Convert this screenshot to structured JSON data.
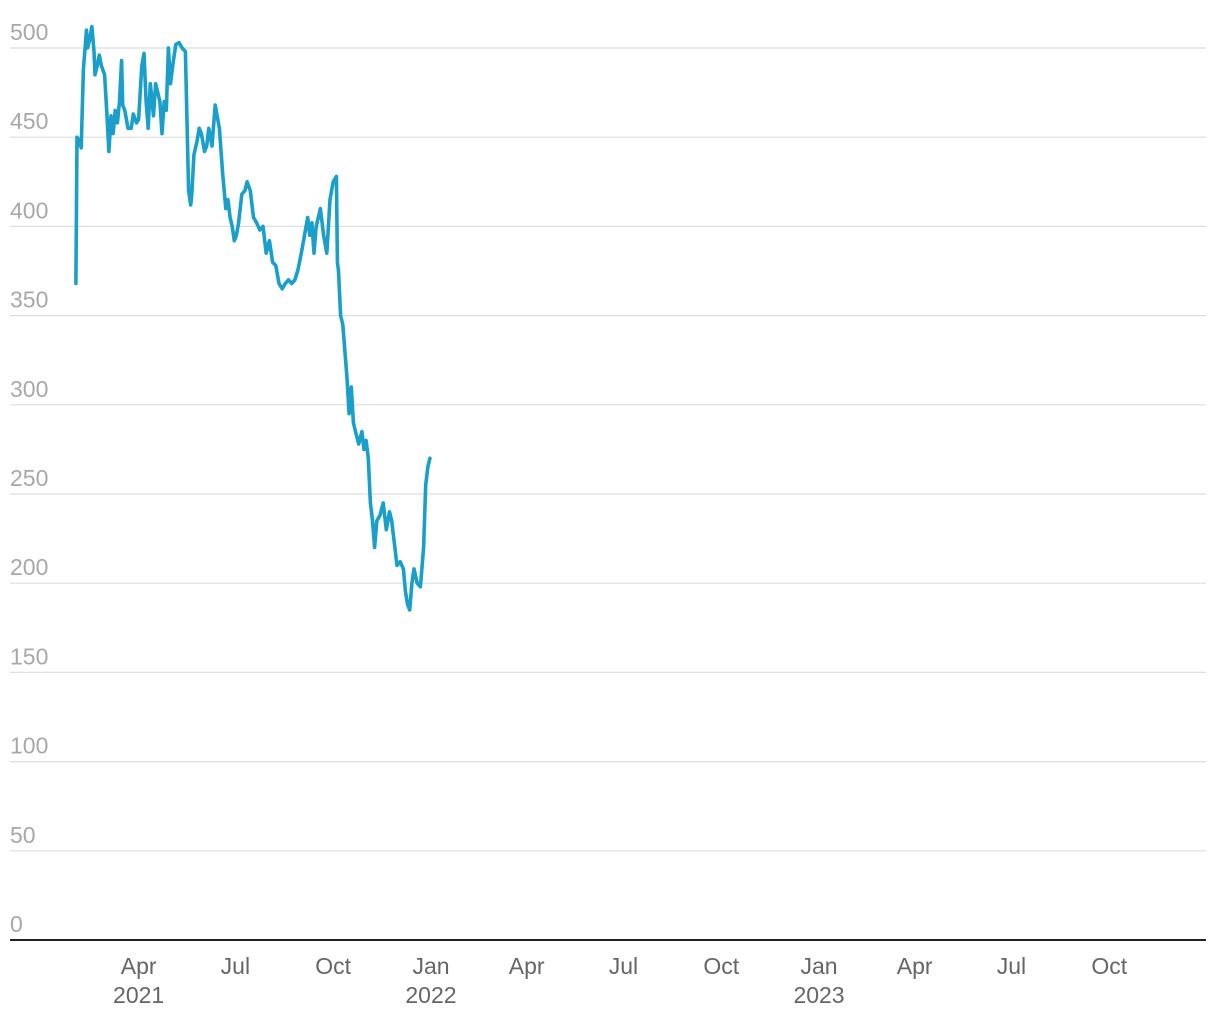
{
  "chart_data": {
    "type": "line",
    "title": "",
    "xlabel": "",
    "ylabel": "",
    "ylim": [
      0,
      500
    ],
    "grid": true,
    "legend": "none",
    "y_ticks": [
      "0",
      "50",
      "100",
      "150",
      "200",
      "250",
      "300",
      "350",
      "400",
      "450",
      "500"
    ],
    "x_ticks": [
      {
        "date": "2021-04-01",
        "label": "Apr",
        "year": "2021"
      },
      {
        "date": "2021-07-01",
        "label": "Jul",
        "year": ""
      },
      {
        "date": "2021-10-01",
        "label": "Oct",
        "year": ""
      },
      {
        "date": "2022-01-01",
        "label": "Jan",
        "year": "2022"
      },
      {
        "date": "2022-04-01",
        "label": "Apr",
        "year": ""
      },
      {
        "date": "2022-07-01",
        "label": "Jul",
        "year": ""
      },
      {
        "date": "2022-10-01",
        "label": "Oct",
        "year": ""
      },
      {
        "date": "2023-01-01",
        "label": "Jan",
        "year": "2023"
      },
      {
        "date": "2023-04-01",
        "label": "Apr",
        "year": ""
      },
      {
        "date": "2023-07-01",
        "label": "Jul",
        "year": ""
      },
      {
        "date": "2023-10-01",
        "label": "Oct",
        "year": ""
      }
    ],
    "x_range": [
      "2020-12-01",
      "2023-12-31"
    ],
    "series": [
      {
        "color": "#1a9fcb",
        "points": [
          [
            "2021-02-01",
            368
          ],
          [
            "2021-02-02",
            450
          ],
          [
            "2021-02-04",
            448
          ],
          [
            "2021-02-06",
            444
          ],
          [
            "2021-02-08",
            488
          ],
          [
            "2021-02-11",
            510
          ],
          [
            "2021-02-12",
            500
          ],
          [
            "2021-02-14",
            505
          ],
          [
            "2021-02-16",
            512
          ],
          [
            "2021-02-18",
            498
          ],
          [
            "2021-02-19",
            485
          ],
          [
            "2021-02-21",
            490
          ],
          [
            "2021-02-23",
            496
          ],
          [
            "2021-02-25",
            490
          ],
          [
            "2021-02-28",
            485
          ],
          [
            "2021-03-02",
            465
          ],
          [
            "2021-03-04",
            442
          ],
          [
            "2021-03-06",
            462
          ],
          [
            "2021-03-08",
            452
          ],
          [
            "2021-03-10",
            465
          ],
          [
            "2021-03-12",
            458
          ],
          [
            "2021-03-14",
            470
          ],
          [
            "2021-03-16",
            493
          ],
          [
            "2021-03-17",
            468
          ],
          [
            "2021-03-19",
            465
          ],
          [
            "2021-03-22",
            455
          ],
          [
            "2021-03-25",
            455
          ],
          [
            "2021-03-27",
            463
          ],
          [
            "2021-03-30",
            458
          ],
          [
            "2021-04-01",
            460
          ],
          [
            "2021-04-04",
            490
          ],
          [
            "2021-04-06",
            497
          ],
          [
            "2021-04-08",
            470
          ],
          [
            "2021-04-10",
            455
          ],
          [
            "2021-04-12",
            480
          ],
          [
            "2021-04-15",
            462
          ],
          [
            "2021-04-17",
            480
          ],
          [
            "2021-04-19",
            475
          ],
          [
            "2021-04-21",
            470
          ],
          [
            "2021-04-23",
            452
          ],
          [
            "2021-04-25",
            470
          ],
          [
            "2021-04-27",
            465
          ],
          [
            "2021-04-29",
            500
          ],
          [
            "2021-05-01",
            480
          ],
          [
            "2021-05-03",
            490
          ],
          [
            "2021-05-06",
            502
          ],
          [
            "2021-05-09",
            503
          ],
          [
            "2021-05-12",
            500
          ],
          [
            "2021-05-15",
            498
          ],
          [
            "2021-05-18",
            420
          ],
          [
            "2021-05-20",
            412
          ],
          [
            "2021-05-21",
            418
          ],
          [
            "2021-05-23",
            440
          ],
          [
            "2021-05-26",
            448
          ],
          [
            "2021-05-28",
            455
          ],
          [
            "2021-05-30",
            452
          ],
          [
            "2021-06-02",
            442
          ],
          [
            "2021-06-04",
            445
          ],
          [
            "2021-06-06",
            455
          ],
          [
            "2021-06-09",
            445
          ],
          [
            "2021-06-12",
            468
          ],
          [
            "2021-06-16",
            455
          ],
          [
            "2021-06-19",
            430
          ],
          [
            "2021-06-22",
            410
          ],
          [
            "2021-06-24",
            415
          ],
          [
            "2021-06-26",
            405
          ],
          [
            "2021-06-28",
            400
          ],
          [
            "2021-06-30",
            392
          ],
          [
            "2021-07-02",
            395
          ],
          [
            "2021-07-04",
            402
          ],
          [
            "2021-07-07",
            418
          ],
          [
            "2021-07-10",
            420
          ],
          [
            "2021-07-12",
            425
          ],
          [
            "2021-07-15",
            420
          ],
          [
            "2021-07-18",
            405
          ],
          [
            "2021-07-21",
            402
          ],
          [
            "2021-07-24",
            398
          ],
          [
            "2021-07-27",
            400
          ],
          [
            "2021-07-30",
            385
          ],
          [
            "2021-08-02",
            392
          ],
          [
            "2021-08-05",
            380
          ],
          [
            "2021-08-08",
            378
          ],
          [
            "2021-08-11",
            368
          ],
          [
            "2021-08-14",
            365
          ],
          [
            "2021-08-17",
            368
          ],
          [
            "2021-08-20",
            370
          ],
          [
            "2021-08-23",
            368
          ],
          [
            "2021-08-26",
            370
          ],
          [
            "2021-08-29",
            376
          ],
          [
            "2021-09-01",
            385
          ],
          [
            "2021-09-04",
            395
          ],
          [
            "2021-09-07",
            405
          ],
          [
            "2021-09-09",
            395
          ],
          [
            "2021-09-11",
            402
          ],
          [
            "2021-09-13",
            385
          ],
          [
            "2021-09-15",
            400
          ],
          [
            "2021-09-17",
            405
          ],
          [
            "2021-09-19",
            410
          ],
          [
            "2021-09-22",
            395
          ],
          [
            "2021-09-25",
            385
          ],
          [
            "2021-09-28",
            415
          ],
          [
            "2021-10-01",
            425
          ],
          [
            "2021-10-04",
            428
          ],
          [
            "2021-10-05",
            380
          ],
          [
            "2021-10-06",
            375
          ],
          [
            "2021-10-08",
            350
          ],
          [
            "2021-10-10",
            345
          ],
          [
            "2021-10-12",
            330
          ],
          [
            "2021-10-14",
            315
          ],
          [
            "2021-10-16",
            295
          ],
          [
            "2021-10-18",
            310
          ],
          [
            "2021-10-20",
            290
          ],
          [
            "2021-10-22",
            285
          ],
          [
            "2021-10-25",
            278
          ],
          [
            "2021-10-28",
            285
          ],
          [
            "2021-10-30",
            275
          ],
          [
            "2021-11-01",
            280
          ],
          [
            "2021-11-03",
            270
          ],
          [
            "2021-11-05",
            245
          ],
          [
            "2021-11-07",
            235
          ],
          [
            "2021-11-09",
            220
          ],
          [
            "2021-11-11",
            235
          ],
          [
            "2021-11-14",
            238
          ],
          [
            "2021-11-17",
            245
          ],
          [
            "2021-11-20",
            230
          ],
          [
            "2021-11-23",
            240
          ],
          [
            "2021-11-25",
            235
          ],
          [
            "2021-11-27",
            225
          ],
          [
            "2021-11-30",
            210
          ],
          [
            "2021-12-03",
            212
          ],
          [
            "2021-12-06",
            208
          ],
          [
            "2021-12-08",
            195
          ],
          [
            "2021-12-10",
            188
          ],
          [
            "2021-12-12",
            185
          ],
          [
            "2021-12-14",
            200
          ],
          [
            "2021-12-16",
            208
          ],
          [
            "2021-12-19",
            200
          ],
          [
            "2021-12-22",
            198
          ],
          [
            "2021-12-25",
            220
          ],
          [
            "2021-12-27",
            255
          ],
          [
            "2021-12-29",
            265
          ],
          [
            "2021-12-31",
            270
          ]
        ]
      }
    ]
  }
}
